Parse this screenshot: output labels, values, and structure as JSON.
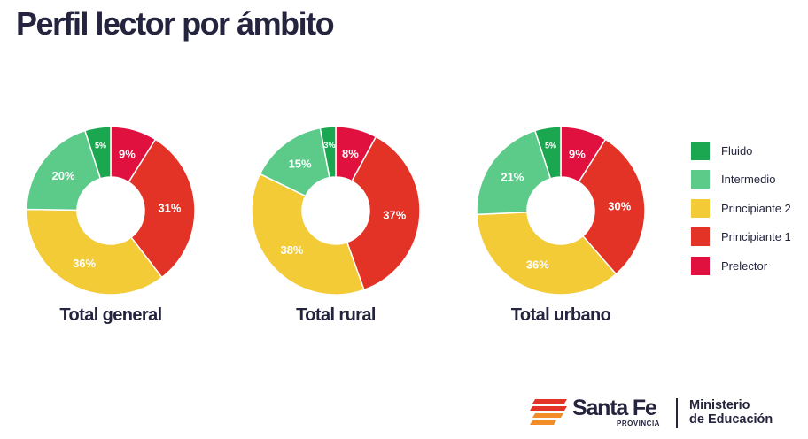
{
  "title": "Perfil lector por ámbito",
  "chart_data": {
    "type": "pie",
    "legend_position": "right",
    "categories": [
      "Fluido",
      "Intermedio",
      "Principiante 2",
      "Principiante 1",
      "Prelector"
    ],
    "colors": {
      "Fluido": "#1aa74f",
      "Intermedio": "#5ccb8a",
      "Principiante 2": "#f2cb37",
      "Principiante 1": "#e23326",
      "Prelector": "#e0103f"
    },
    "charts": [
      {
        "label": "Total general",
        "slices": [
          {
            "category": "Prelector",
            "value": 9,
            "label": "9%"
          },
          {
            "category": "Principiante 1",
            "value": 31,
            "label": "31%"
          },
          {
            "category": "Principiante 2",
            "value": 36,
            "label": "36%"
          },
          {
            "category": "Intermedio",
            "value": 20,
            "label": "20%"
          },
          {
            "category": "Fluido",
            "value": 5,
            "label": "5%"
          }
        ]
      },
      {
        "label": "Total rural",
        "slices": [
          {
            "category": "Prelector",
            "value": 8,
            "label": "8%"
          },
          {
            "category": "Principiante 1",
            "value": 37,
            "label": "37%"
          },
          {
            "category": "Principiante 2",
            "value": 38,
            "label": "38%"
          },
          {
            "category": "Intermedio",
            "value": 15,
            "label": "15%"
          },
          {
            "category": "Fluido",
            "value": 3,
            "label": "3%"
          }
        ]
      },
      {
        "label": "Total urbano",
        "slices": [
          {
            "category": "Prelector",
            "value": 9,
            "label": "9%"
          },
          {
            "category": "Principiante 1",
            "value": 30,
            "label": "30%"
          },
          {
            "category": "Principiante 2",
            "value": 36,
            "label": "36%"
          },
          {
            "category": "Intermedio",
            "value": 21,
            "label": "21%"
          },
          {
            "category": "Fluido",
            "value": 5,
            "label": "5%"
          }
        ]
      }
    ]
  },
  "legend": [
    {
      "label": "Fluido",
      "color": "#1aa74f"
    },
    {
      "label": "Intermedio",
      "color": "#5ccb8a"
    },
    {
      "label": "Principiante 2",
      "color": "#f2cb37"
    },
    {
      "label": "Principiante 1",
      "color": "#e23326"
    },
    {
      "label": "Prelector",
      "color": "#e0103f"
    }
  ],
  "footer": {
    "brand": "Santa Fe",
    "brand_sub": "PROVINCIA",
    "ministry_line1": "Ministerio",
    "ministry_line2": "de Educación",
    "logo_colors": [
      "#e23326",
      "#f28c28"
    ]
  }
}
